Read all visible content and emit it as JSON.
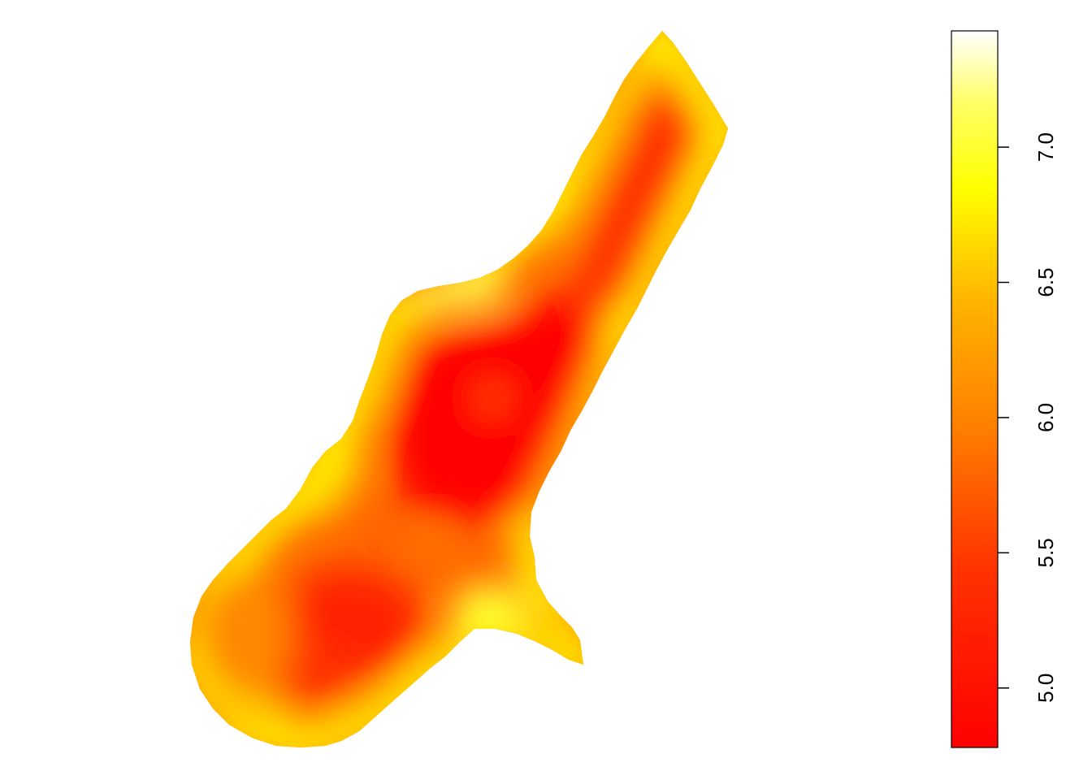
{
  "chart_data": {
    "type": "heatmap",
    "title": "",
    "xlabel": "",
    "ylabel": "",
    "axes_shown": false,
    "colormap": "heat.colors",
    "color_low": "#ff0000",
    "color_mid": "#ff9900",
    "color_high": "#ffff00",
    "color_top": "#ffffff",
    "legend": {
      "position": "right",
      "zlim": [
        4.78,
        7.43
      ],
      "ticks": [
        "5.0",
        "5.5",
        "6.0",
        "6.5",
        "7.0"
      ]
    },
    "value_range": [
      4.8,
      7.4
    ],
    "description_of_field": [
      {
        "region": "northeast-arm-core",
        "approx_value": 5.6
      },
      {
        "region": "northeast-arm-western-edge",
        "approx_value": 6.8
      },
      {
        "region": "central-core",
        "approx_value": 4.9
      },
      {
        "region": "central-north-rim",
        "approx_value": 7.1
      },
      {
        "region": "southwest-lobe-core",
        "approx_value": 5.4
      },
      {
        "region": "southwest-lobe-outer",
        "approx_value": 6.2
      },
      {
        "region": "south-spur",
        "approx_value": 6.3
      },
      {
        "region": "south-spur-hotspot",
        "approx_value": 7.0
      }
    ]
  }
}
